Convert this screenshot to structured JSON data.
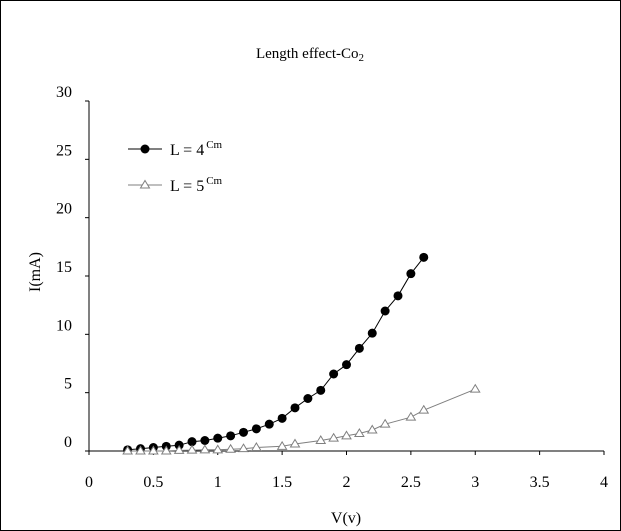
{
  "chart_data": {
    "type": "line",
    "title": "Length effect-Co",
    "title_subscript": "2",
    "xlabel": "V(v)",
    "ylabel": "I(mA)",
    "xlim": [
      0,
      4
    ],
    "ylim": [
      0,
      30
    ],
    "x_ticks": [
      "0",
      "0.5",
      "1",
      "1.5",
      "2",
      "2.5",
      "3",
      "3.5",
      "4"
    ],
    "y_ticks": [
      "0",
      "5",
      "10",
      "15",
      "20",
      "25",
      "30"
    ],
    "grid": false,
    "legend_position": "top-left",
    "series": [
      {
        "name": "L = 4",
        "name_superscript": "Cm",
        "marker": "filled-circle",
        "color": "#000000",
        "x": [
          0.3,
          0.4,
          0.5,
          0.6,
          0.7,
          0.8,
          0.9,
          1.0,
          1.1,
          1.2,
          1.3,
          1.4,
          1.5,
          1.6,
          1.7,
          1.8,
          1.9,
          2.0,
          2.1,
          2.2,
          2.3,
          2.4,
          2.5,
          2.6
        ],
        "y": [
          0.1,
          0.2,
          0.3,
          0.4,
          0.5,
          0.8,
          0.9,
          1.1,
          1.3,
          1.6,
          1.9,
          2.3,
          2.8,
          3.7,
          4.5,
          5.2,
          6.6,
          7.4,
          8.8,
          10.1,
          12.0,
          13.3,
          15.2,
          16.6
        ]
      },
      {
        "name": "L = 5",
        "name_superscript": "Cm",
        "marker": "hollow-triangle",
        "color": "#7f7f7f",
        "x": [
          0.3,
          0.4,
          0.5,
          0.6,
          0.7,
          0.8,
          0.9,
          1.0,
          1.1,
          1.2,
          1.3,
          1.5,
          1.6,
          1.8,
          1.9,
          2.0,
          2.1,
          2.2,
          2.3,
          2.5,
          2.6,
          3.0
        ],
        "y": [
          0.0,
          0.0,
          0.0,
          0.0,
          0.05,
          0.08,
          0.1,
          0.1,
          0.15,
          0.2,
          0.3,
          0.4,
          0.6,
          0.9,
          1.1,
          1.3,
          1.5,
          1.8,
          2.3,
          2.9,
          3.5,
          5.3
        ]
      }
    ]
  }
}
